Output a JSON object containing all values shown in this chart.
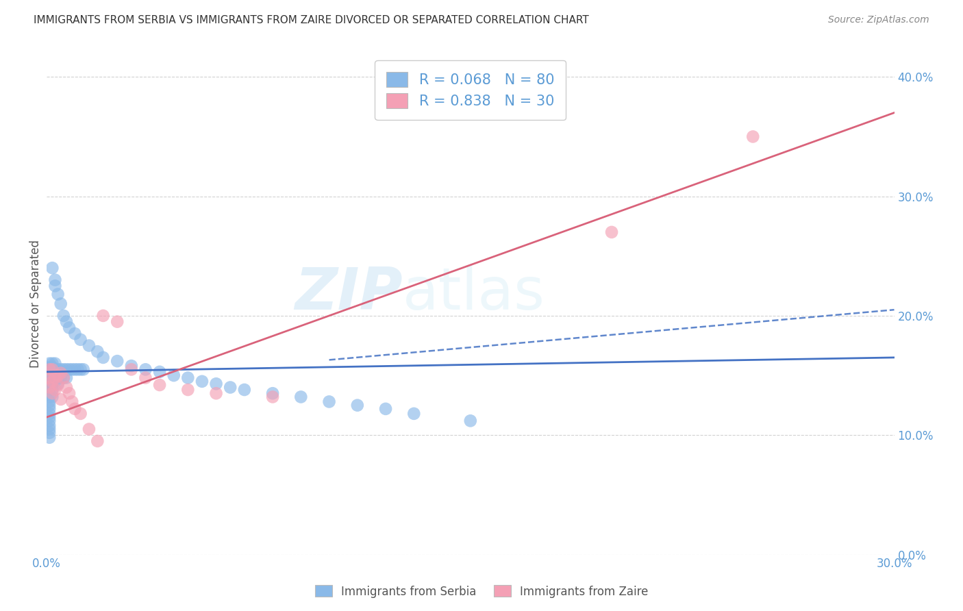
{
  "title": "IMMIGRANTS FROM SERBIA VS IMMIGRANTS FROM ZAIRE DIVORCED OR SEPARATED CORRELATION CHART",
  "source": "Source: ZipAtlas.com",
  "ylabel": "Divorced or Separated",
  "xlim": [
    0.0,
    0.3
  ],
  "ylim": [
    0.0,
    0.42
  ],
  "legend_label1": "R = 0.068   N = 80",
  "legend_label2": "R = 0.838   N = 30",
  "serbia_color": "#8ab9e8",
  "zaire_color": "#f4a0b5",
  "serbia_line_color": "#4472c4",
  "zaire_line_color": "#d9627a",
  "watermark_zip": "ZIP",
  "watermark_atlas": "atlas",
  "legend_serbia_text": "Immigrants from Serbia",
  "legend_zaire_text": "Immigrants from Zaire",
  "serbia_x": [
    0.001,
    0.001,
    0.001,
    0.001,
    0.001,
    0.001,
    0.001,
    0.001,
    0.001,
    0.001,
    0.001,
    0.001,
    0.001,
    0.001,
    0.001,
    0.001,
    0.001,
    0.001,
    0.001,
    0.001,
    0.002,
    0.002,
    0.002,
    0.002,
    0.002,
    0.002,
    0.002,
    0.002,
    0.002,
    0.002,
    0.003,
    0.003,
    0.003,
    0.003,
    0.003,
    0.004,
    0.004,
    0.004,
    0.005,
    0.005,
    0.006,
    0.006,
    0.007,
    0.007,
    0.008,
    0.009,
    0.01,
    0.011,
    0.012,
    0.013,
    0.002,
    0.003,
    0.003,
    0.004,
    0.005,
    0.006,
    0.007,
    0.008,
    0.01,
    0.012,
    0.015,
    0.018,
    0.02,
    0.025,
    0.03,
    0.035,
    0.04,
    0.045,
    0.05,
    0.055,
    0.06,
    0.065,
    0.07,
    0.08,
    0.09,
    0.1,
    0.11,
    0.12,
    0.13,
    0.15
  ],
  "serbia_y": [
    0.155,
    0.148,
    0.152,
    0.145,
    0.16,
    0.143,
    0.157,
    0.15,
    0.138,
    0.132,
    0.128,
    0.125,
    0.122,
    0.118,
    0.115,
    0.112,
    0.108,
    0.105,
    0.102,
    0.098,
    0.155,
    0.148,
    0.152,
    0.145,
    0.16,
    0.143,
    0.157,
    0.15,
    0.138,
    0.132,
    0.155,
    0.148,
    0.152,
    0.145,
    0.16,
    0.155,
    0.148,
    0.143,
    0.155,
    0.148,
    0.155,
    0.148,
    0.155,
    0.148,
    0.155,
    0.155,
    0.155,
    0.155,
    0.155,
    0.155,
    0.24,
    0.23,
    0.225,
    0.218,
    0.21,
    0.2,
    0.195,
    0.19,
    0.185,
    0.18,
    0.175,
    0.17,
    0.165,
    0.162,
    0.158,
    0.155,
    0.153,
    0.15,
    0.148,
    0.145,
    0.143,
    0.14,
    0.138,
    0.135,
    0.132,
    0.128,
    0.125,
    0.122,
    0.118,
    0.112
  ],
  "zaire_x": [
    0.001,
    0.001,
    0.001,
    0.002,
    0.002,
    0.002,
    0.003,
    0.003,
    0.004,
    0.004,
    0.005,
    0.005,
    0.006,
    0.007,
    0.008,
    0.009,
    0.01,
    0.012,
    0.015,
    0.018,
    0.02,
    0.025,
    0.03,
    0.035,
    0.04,
    0.05,
    0.06,
    0.08,
    0.2,
    0.25
  ],
  "zaire_y": [
    0.155,
    0.148,
    0.14,
    0.155,
    0.145,
    0.135,
    0.148,
    0.138,
    0.15,
    0.142,
    0.152,
    0.13,
    0.148,
    0.14,
    0.135,
    0.128,
    0.122,
    0.118,
    0.105,
    0.095,
    0.2,
    0.195,
    0.155,
    0.148,
    0.142,
    0.138,
    0.135,
    0.132,
    0.27,
    0.35
  ],
  "serbia_reg": [
    0.0,
    0.3,
    0.153,
    0.165
  ],
  "zaire_reg": [
    0.0,
    0.3,
    0.115,
    0.37
  ],
  "serbia_dash": [
    0.1,
    0.3,
    0.163,
    0.205
  ]
}
